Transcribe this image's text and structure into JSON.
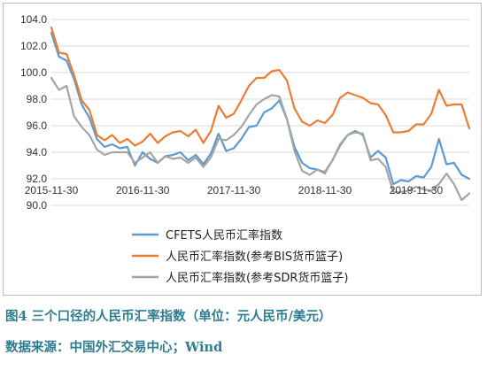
{
  "caption": {
    "title": "图4   三个口径的人民币汇率指数（单位：元人民币/美元）",
    "source": "数据来源：中国外汇交易中心；Wind"
  },
  "chart_data": {
    "type": "line",
    "title": "",
    "xlabel": "",
    "ylabel": "",
    "ylim": [
      90.0,
      104.0
    ],
    "yticks": [
      90.0,
      92.0,
      94.0,
      96.0,
      98.0,
      100.0,
      102.0,
      104.0
    ],
    "ytick_labels": [
      "90.0",
      "92.0",
      "94.0",
      "96.0",
      "98.0",
      "100.0",
      "102.0",
      "104.0"
    ],
    "xlim": [
      "2015-11-30",
      "2020-06-30"
    ],
    "xtick_labels": [
      "2015-11-30",
      "2016-11-30",
      "2017-11-30",
      "2018-11-30",
      "2019-11-30"
    ],
    "grid": true,
    "legend_position": "bottom",
    "x": [
      "2015-11",
      "2015-12",
      "2016-01",
      "2016-02",
      "2016-03",
      "2016-04",
      "2016-05",
      "2016-06",
      "2016-07",
      "2016-08",
      "2016-09",
      "2016-10",
      "2016-11",
      "2016-12",
      "2017-01",
      "2017-02",
      "2017-03",
      "2017-04",
      "2017-05",
      "2017-06",
      "2017-07",
      "2017-08",
      "2017-09",
      "2017-10",
      "2017-11",
      "2017-12",
      "2018-01",
      "2018-02",
      "2018-03",
      "2018-04",
      "2018-05",
      "2018-06",
      "2018-07",
      "2018-08",
      "2018-09",
      "2018-10",
      "2018-11",
      "2018-12",
      "2019-01",
      "2019-02",
      "2019-03",
      "2019-04",
      "2019-05",
      "2019-06",
      "2019-07",
      "2019-08",
      "2019-09",
      "2019-10",
      "2019-11",
      "2019-12",
      "2020-01",
      "2020-02",
      "2020-03",
      "2020-04",
      "2020-05",
      "2020-06"
    ],
    "series": [
      {
        "name": "CFETS人民币汇率指数",
        "color": "#5b9bd5",
        "values": [
          103.0,
          101.2,
          100.9,
          99.5,
          97.6,
          96.6,
          95.0,
          94.4,
          94.6,
          94.3,
          94.4,
          93.0,
          94.0,
          93.5,
          93.2,
          93.7,
          93.8,
          94.0,
          93.4,
          93.8,
          93.1,
          93.9,
          95.4,
          94.1,
          94.3,
          95.0,
          95.9,
          96.0,
          97.0,
          97.3,
          97.9,
          96.5,
          94.4,
          93.2,
          92.8,
          92.7,
          92.5,
          93.4,
          94.5,
          95.3,
          95.6,
          95.3,
          93.6,
          94.1,
          93.6,
          91.6,
          91.9,
          91.8,
          92.2,
          92.1,
          92.9,
          95.0,
          93.1,
          93.2,
          92.3,
          92.0
        ]
      },
      {
        "name": "人民币汇率指数(参考BIS货币篮子)",
        "color": "#ed7d31",
        "values": [
          103.4,
          101.5,
          101.4,
          99.8,
          97.9,
          97.2,
          95.3,
          94.9,
          95.3,
          94.7,
          95.0,
          94.5,
          94.8,
          95.4,
          94.7,
          95.2,
          95.5,
          95.6,
          95.2,
          95.7,
          94.7,
          95.6,
          97.5,
          96.6,
          96.9,
          97.9,
          99.0,
          99.6,
          99.6,
          100.1,
          100.2,
          99.4,
          97.3,
          96.3,
          96.0,
          96.4,
          96.2,
          96.8,
          98.1,
          98.5,
          98.3,
          98.1,
          97.7,
          97.6,
          96.8,
          95.5,
          95.5,
          95.6,
          96.1,
          96.1,
          96.9,
          98.7,
          97.5,
          97.6,
          97.6,
          95.8
        ]
      },
      {
        "name": "人民币汇率指数(参考SDR货币篮子)",
        "color": "#a5a5a5",
        "values": [
          99.6,
          98.7,
          99.0,
          96.7,
          95.9,
          95.3,
          94.2,
          93.8,
          94.0,
          94.0,
          94.0,
          93.2,
          93.6,
          94.0,
          93.2,
          93.7,
          93.5,
          93.6,
          93.2,
          93.6,
          92.9,
          93.6,
          95.0,
          94.9,
          95.3,
          95.9,
          96.8,
          97.6,
          98.0,
          98.3,
          98.2,
          96.5,
          94.1,
          92.6,
          92.3,
          92.7,
          92.4,
          93.4,
          94.6,
          95.3,
          95.5,
          95.4,
          93.4,
          93.5,
          92.9,
          91.0,
          91.0,
          91.1,
          91.4,
          91.2,
          91.1,
          91.6,
          92.4,
          91.6,
          90.4,
          90.9
        ]
      }
    ]
  }
}
